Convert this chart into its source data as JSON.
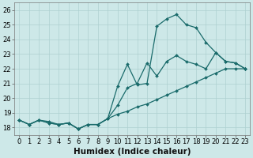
{
  "xlabel": "Humidex (Indice chaleur)",
  "background_color": "#cde8e8",
  "line_color": "#1a6b6b",
  "xlim": [
    -0.5,
    23.5
  ],
  "ylim": [
    17.5,
    26.5
  ],
  "xticks": [
    0,
    1,
    2,
    3,
    4,
    5,
    6,
    7,
    8,
    9,
    10,
    11,
    12,
    13,
    14,
    15,
    16,
    17,
    18,
    19,
    20,
    21,
    22,
    23
  ],
  "yticks": [
    18,
    19,
    20,
    21,
    22,
    23,
    24,
    25,
    26
  ],
  "line1_x": [
    0,
    1,
    2,
    3,
    4,
    5,
    6,
    7,
    8,
    9,
    10,
    11,
    12,
    13,
    14,
    15,
    16,
    17,
    18,
    19,
    20,
    21,
    22,
    23
  ],
  "line1_y": [
    18.5,
    18.2,
    18.5,
    18.4,
    18.2,
    18.3,
    17.9,
    18.2,
    18.2,
    18.6,
    18.9,
    19.1,
    19.4,
    19.6,
    19.9,
    20.2,
    20.5,
    20.8,
    21.1,
    21.4,
    21.7,
    22.0,
    22.0,
    22.0
  ],
  "line2_x": [
    0,
    1,
    2,
    3,
    4,
    5,
    6,
    7,
    8,
    9,
    10,
    11,
    12,
    13,
    14,
    15,
    16,
    17,
    18,
    19,
    20,
    21,
    22,
    23
  ],
  "line2_y": [
    18.5,
    18.2,
    18.5,
    18.3,
    18.2,
    18.3,
    17.9,
    18.2,
    18.2,
    18.6,
    20.8,
    22.3,
    20.9,
    21.0,
    24.9,
    25.4,
    25.7,
    25.0,
    24.8,
    23.8,
    23.1,
    22.5,
    22.4,
    22.0
  ],
  "line3_x": [
    0,
    1,
    2,
    3,
    4,
    5,
    6,
    7,
    8,
    9,
    10,
    11,
    12,
    13,
    14,
    15,
    16,
    17,
    18,
    19,
    20,
    21,
    22,
    23
  ],
  "line3_y": [
    18.5,
    18.2,
    18.5,
    18.3,
    18.2,
    18.3,
    17.9,
    18.2,
    18.2,
    18.6,
    19.5,
    20.7,
    21.0,
    22.4,
    21.5,
    22.5,
    22.9,
    22.5,
    22.3,
    22.0,
    23.1,
    22.5,
    22.4,
    22.0
  ],
  "grid_color": "#aed0d0",
  "tick_fontsize": 6,
  "xlabel_fontsize": 7.5
}
